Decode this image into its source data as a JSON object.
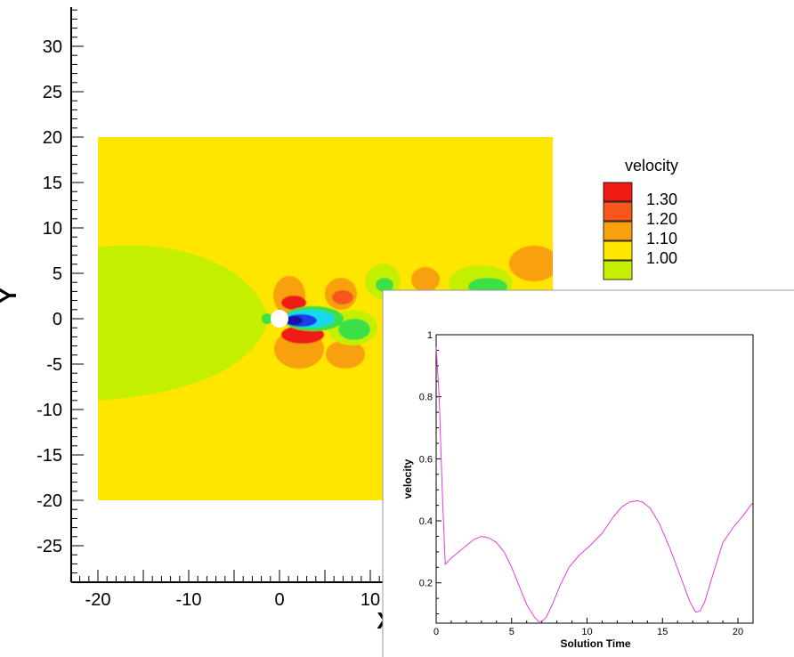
{
  "contour_plot": {
    "xlabel": "X",
    "ylabel": "Y",
    "xlim": [
      -23,
      23
    ],
    "ylim": [
      -29,
      34
    ],
    "xticks": [
      -20,
      -10,
      0,
      10
    ],
    "yticks": [
      30,
      25,
      20,
      15,
      10,
      5,
      0,
      -5,
      -10,
      -15,
      -20,
      -25
    ],
    "domain": {
      "x": [
        -20,
        30
      ],
      "y": [
        -20,
        20
      ]
    },
    "cylinder": {
      "center": [
        0,
        0
      ],
      "radius": 1
    },
    "legend": {
      "title": "velocity",
      "levels": [
        {
          "label": "1.30",
          "color": "#ee1c14"
        },
        {
          "label": "1.20",
          "color": "#f9561b"
        },
        {
          "label": "1.10",
          "color": "#f8a00d"
        },
        {
          "label": "1.00",
          "color": "#ffe600"
        },
        {
          "label": "",
          "color": "#c4f000"
        }
      ]
    },
    "colors": {
      "background_field": "#ffe600",
      "upstream_region": "#c4f000",
      "high": "#ee1c14",
      "mid_high": "#f9561b",
      "medium": "#f8a00d",
      "low_green": "#3be047",
      "cyan": "#19d8ee",
      "blue": "#1a3fe8",
      "dark_blue": "#1b09a8"
    }
  },
  "chart_data": {
    "type": "line",
    "title": "",
    "xlabel": "Solution Time",
    "ylabel": "velocity",
    "xlim": [
      0,
      21
    ],
    "ylim": [
      0.07,
      1.0
    ],
    "xticks": [
      0,
      5,
      10,
      15,
      20
    ],
    "yticks": [
      0.2,
      0.4,
      0.6,
      0.8,
      1
    ],
    "series": [
      {
        "color": "#e23ee2",
        "x": [
          0,
          0.2,
          0.4,
          0.6,
          1.0,
          1.5,
          2.0,
          2.5,
          3.0,
          3.5,
          4.0,
          4.5,
          5.0,
          5.5,
          6.0,
          6.5,
          6.8,
          7.0,
          7.3,
          7.7,
          8.2,
          8.8,
          9.5,
          10.2,
          11.0,
          11.7,
          12.3,
          12.8,
          13.3,
          13.7,
          14.2,
          14.8,
          15.5,
          16.2,
          16.8,
          17.2,
          17.5,
          17.8,
          18.3,
          19.0,
          19.7,
          20.4,
          21.0
        ],
        "y": [
          0.96,
          0.8,
          0.5,
          0.26,
          0.28,
          0.3,
          0.32,
          0.34,
          0.35,
          0.345,
          0.33,
          0.3,
          0.25,
          0.19,
          0.13,
          0.09,
          0.075,
          0.075,
          0.09,
          0.13,
          0.19,
          0.25,
          0.29,
          0.32,
          0.36,
          0.41,
          0.445,
          0.46,
          0.465,
          0.46,
          0.44,
          0.39,
          0.31,
          0.22,
          0.14,
          0.105,
          0.11,
          0.14,
          0.22,
          0.33,
          0.38,
          0.42,
          0.46
        ]
      }
    ]
  }
}
